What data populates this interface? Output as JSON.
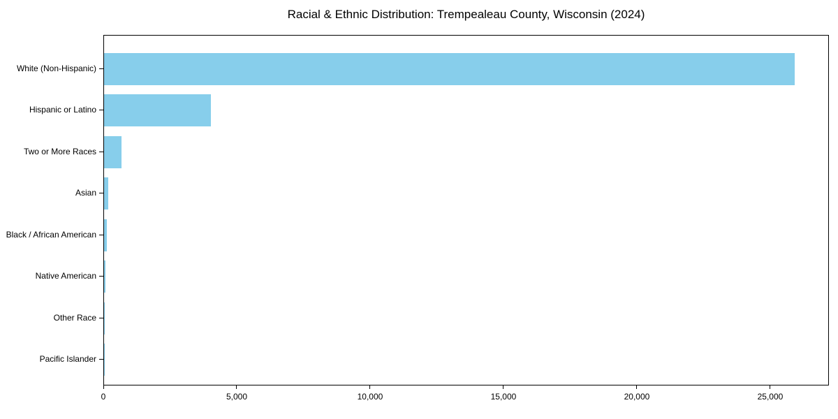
{
  "chart_data": {
    "type": "bar",
    "orientation": "horizontal",
    "title": "Racial & Ethnic Distribution: Trempealeau County, Wisconsin (2024)",
    "categories": [
      "White (Non-Hispanic)",
      "Hispanic or Latino",
      "Two or More Races",
      "Asian",
      "Black / African American",
      "Native American",
      "Other Race",
      "Pacific Islander"
    ],
    "values": [
      25900,
      4000,
      650,
      160,
      110,
      40,
      25,
      5
    ],
    "xlabel": "",
    "ylabel": "",
    "xlim": [
      0,
      27200
    ],
    "x_ticks": [
      0,
      5000,
      10000,
      15000,
      20000,
      25000
    ],
    "x_tick_labels": [
      "0",
      "5,000",
      "10,000",
      "15,000",
      "20,000",
      "25,000"
    ],
    "bar_color": "#87CEEB",
    "spine_color": "#000000",
    "background_color": "#ffffff",
    "grid": false,
    "legend_position": "none"
  }
}
